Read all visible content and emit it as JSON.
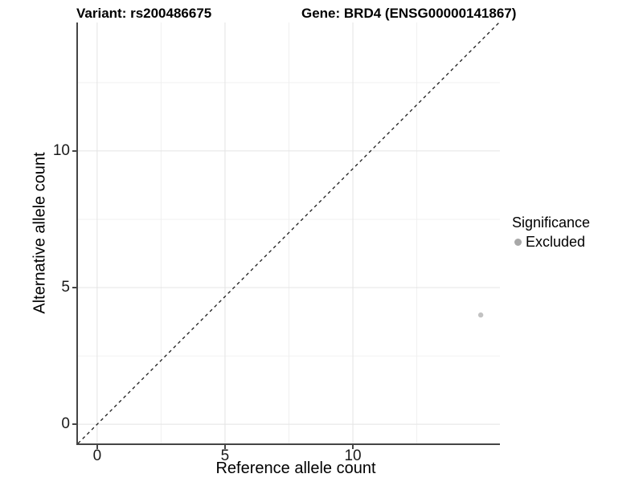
{
  "figure": {
    "title_left": "Variant: rs200486675",
    "title_right": "Gene: BRD4 (ENSG00000141867)"
  },
  "legend": {
    "title": "Significance",
    "items": [
      {
        "label": "Excluded",
        "color": "#a8a8a8"
      }
    ]
  },
  "chart_data": {
    "type": "scatter",
    "title": "Variant: rs200486675    Gene: BRD4 (ENSG00000141867)",
    "xlabel": "Reference allele count",
    "ylabel": "Alternative allele count",
    "xlim": [
      -0.75,
      15.75
    ],
    "ylim": [
      -0.7,
      14.7
    ],
    "x_major_ticks": [
      0,
      5,
      10
    ],
    "x_minor_gridlines": [
      2.5,
      7.5,
      12.5
    ],
    "y_major_ticks": [
      0,
      5,
      10
    ],
    "y_minor_gridlines": [
      2.5,
      7.5,
      12.5
    ],
    "grid": "major+minor",
    "legend_position": "right",
    "series": [
      {
        "name": "Excluded",
        "points": [
          {
            "x": 15,
            "y": 4
          }
        ]
      }
    ],
    "abline": {
      "slope": 1,
      "intercept": 0,
      "linetype": "dashed"
    },
    "colors": {
      "point": "#c2c2c2",
      "abline": "#1a1a1a",
      "grid_major": "#e4e4e4",
      "grid_minor": "#f0f0f0",
      "axis_line": "#454545",
      "tick_text": "#1a1a1a"
    }
  }
}
